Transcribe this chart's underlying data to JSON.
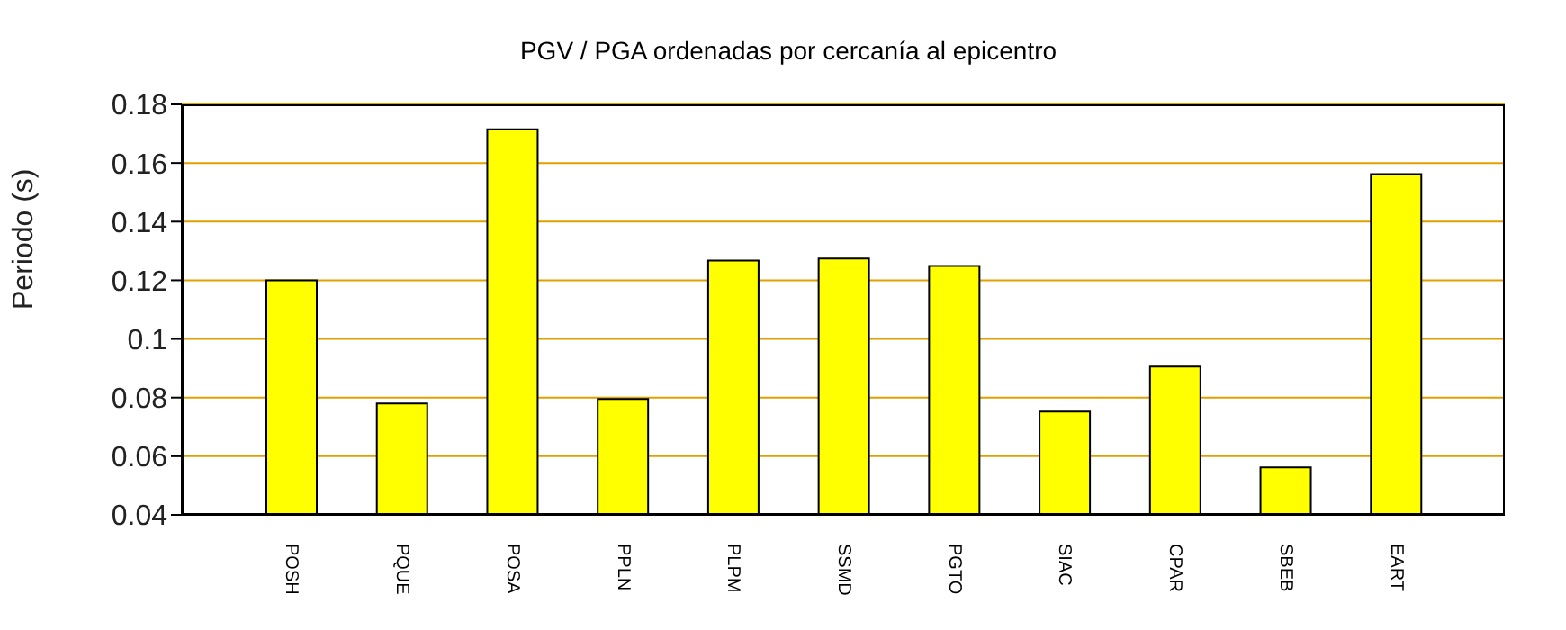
{
  "chart_data": {
    "type": "bar",
    "title": "PGV / PGA ordenadas por cercanía al epicentro",
    "ylabel": "Periodo (s)",
    "categories": [
      "POSH",
      "PQUE",
      "POSA",
      "PPLN",
      "PLPM",
      "SSMD",
      "PGTO",
      "SIAC",
      "CPAR",
      "SBEB",
      "EART"
    ],
    "values": [
      0.12,
      0.078,
      0.1715,
      0.0795,
      0.1267,
      0.1274,
      0.1249,
      0.0752,
      0.0906,
      0.0562,
      0.1562
    ],
    "color": "#ffff00",
    "ylim": [
      0.04,
      0.18
    ],
    "yticks": [
      0.04,
      0.06,
      0.08,
      0.1,
      0.12,
      0.14,
      0.16,
      0.18
    ],
    "grid": "y"
  }
}
